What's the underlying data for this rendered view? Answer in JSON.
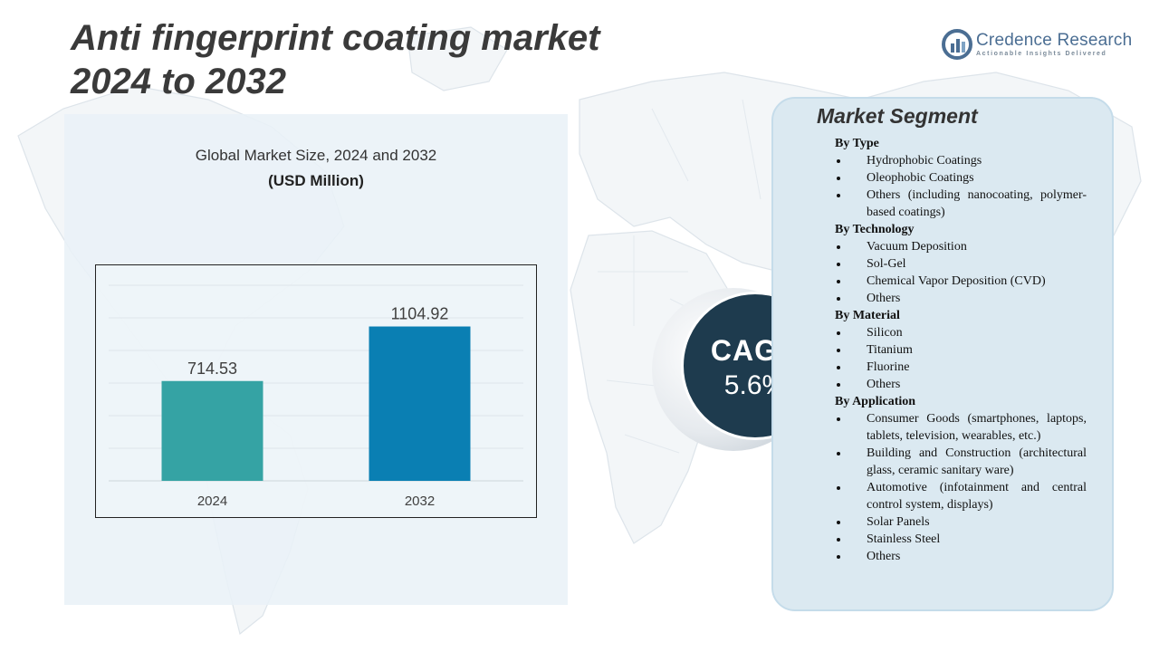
{
  "title": {
    "line1": "Anti fingerprint coating market",
    "line2": "2024 to 2032"
  },
  "brand": {
    "name": "Credence Research",
    "tagline": "Actionable Insights Delivered"
  },
  "chart_panel": {
    "heading": "Global Market Size, 2024 and 2032",
    "unit": "(USD Million)"
  },
  "chart_data": {
    "type": "bar",
    "categories": [
      "2024",
      "2032"
    ],
    "values": [
      714.53,
      1104.92
    ],
    "value_labels": [
      "714.53",
      "1104.92"
    ],
    "colors": [
      "#35a3a4",
      "#0a7fb3"
    ],
    "ylim": [
      0,
      1400
    ],
    "grid": true,
    "grid_lines": 6,
    "title": "Global Market Size, 2024 and 2032",
    "ylabel": "(USD Million)",
    "xlabel": ""
  },
  "cagr": {
    "label": "CAGR",
    "value": "5.6%"
  },
  "segments": {
    "title": "Market Segment",
    "groups": [
      {
        "title": "By Type",
        "items": [
          "Hydrophobic Coatings",
          "Oleophobic Coatings",
          "Others (including nanocoating, polymer-based coatings)"
        ]
      },
      {
        "title": "By Technology",
        "items": [
          "Vacuum Deposition",
          "Sol-Gel",
          "Chemical Vapor Deposition (CVD)",
          "Others"
        ]
      },
      {
        "title": "By Material",
        "items": [
          "Silicon",
          "Titanium",
          "Fluorine",
          "Others"
        ]
      },
      {
        "title": "By Application",
        "items": [
          "Consumer Goods (smartphones, laptops, tablets, television, wearables, etc.)",
          "Building and Construction (architectural glass, ceramic sanitary ware)",
          "Automotive (infotainment and central control system, displays)",
          "Solar Panels",
          "Stainless Steel",
          "Others"
        ]
      }
    ]
  }
}
